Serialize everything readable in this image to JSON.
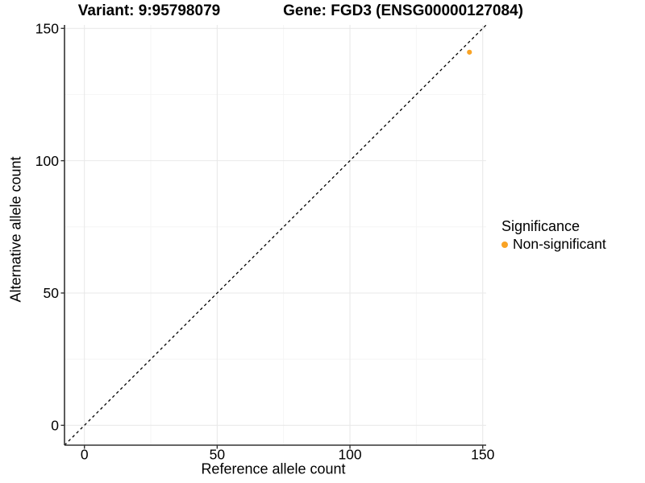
{
  "chart_data": {
    "type": "scatter",
    "title_left": "Variant: 9:95798079",
    "title_right": "Gene: FGD3 (ENSG00000127084)",
    "xlabel": "Reference allele count",
    "ylabel": "Alternative allele count",
    "x_ticks": [
      0,
      50,
      100,
      150
    ],
    "y_ticks": [
      0,
      50,
      100,
      150
    ],
    "xlim": [
      -7.5,
      151.3
    ],
    "ylim": [
      -7.5,
      151.3
    ],
    "grid": "major+minor",
    "grid_colors": {
      "major": "#E9E9E9",
      "minor": "#F4F4F4"
    },
    "axis_line_color": "#333333",
    "reference_line": {
      "type": "abline",
      "intercept": 0,
      "slope": 1,
      "style": "dashed",
      "color": "#000000"
    },
    "series": [
      {
        "name": "Non-significant",
        "color": "#F9A325",
        "points": [
          {
            "x": 145,
            "y": 141
          }
        ]
      }
    ],
    "legend": {
      "title": "Significance",
      "position": "right",
      "entries": [
        {
          "label": "Non-significant",
          "color": "#F9A325"
        }
      ]
    }
  }
}
